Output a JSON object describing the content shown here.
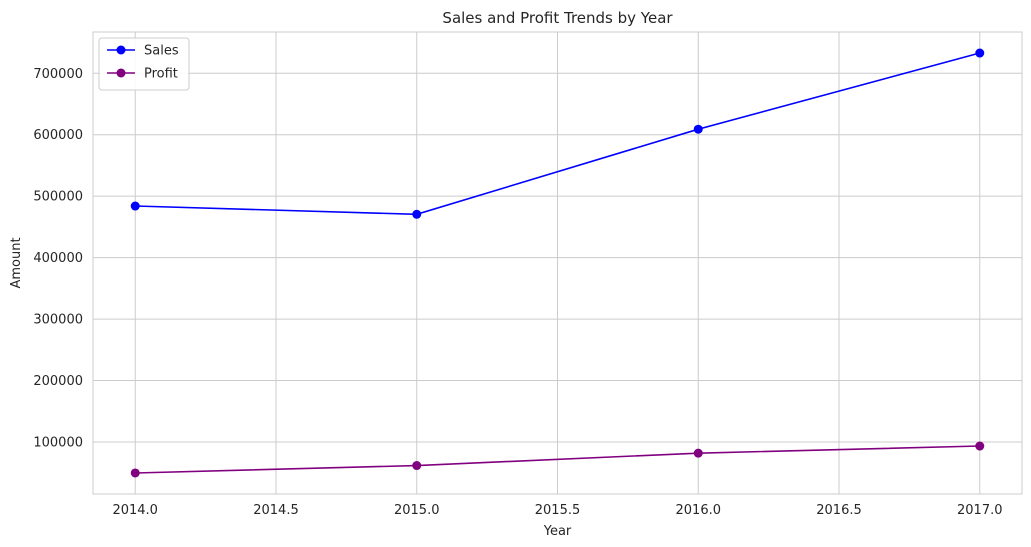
{
  "chart_data": {
    "type": "line",
    "title": "Sales and Profit Trends by Year",
    "xlabel": "Year",
    "ylabel": "Amount",
    "x": [
      2014,
      2015,
      2016,
      2017
    ],
    "series": [
      {
        "name": "Sales",
        "color": "#0000ff",
        "values": [
          484000,
          470500,
          609000,
          733000
        ]
      },
      {
        "name": "Profit",
        "color": "#800080",
        "values": [
          49500,
          61600,
          81800,
          93400
        ]
      }
    ],
    "xlim": [
      2013.85,
      2017.15
    ],
    "ylim": [
      15300,
      767200
    ],
    "xticks": [
      "2014.0",
      "2014.5",
      "2015.0",
      "2015.5",
      "2016.0",
      "2016.5",
      "2017.0"
    ],
    "xtick_values": [
      2014.0,
      2014.5,
      2015.0,
      2015.5,
      2016.0,
      2016.5,
      2017.0
    ],
    "yticks": [
      "100000",
      "200000",
      "300000",
      "400000",
      "500000",
      "600000",
      "700000"
    ],
    "ytick_values": [
      100000,
      200000,
      300000,
      400000,
      500000,
      600000,
      700000
    ],
    "grid": true,
    "legend_position": "upper-left",
    "markers": "circle"
  }
}
